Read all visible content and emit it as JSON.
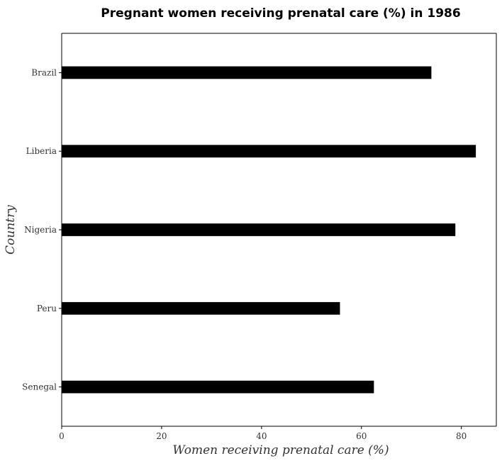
{
  "chart_data": {
    "type": "bar",
    "orientation": "horizontal",
    "title": "Pregnant women receiving prenatal care (%) in 1986",
    "xlabel": "Women receiving prenatal care (%)",
    "ylabel": "Country",
    "categories": [
      "Brazil",
      "Liberia",
      "Nigeria",
      "Peru",
      "Senegal"
    ],
    "values": [
      74.0,
      82.9,
      78.8,
      55.7,
      62.5
    ],
    "xlim": [
      0,
      87
    ],
    "xticks": [
      0,
      20,
      40,
      60,
      80
    ],
    "xtick_labels": [
      "0",
      "20",
      "40",
      "60",
      "80"
    ],
    "grid": false,
    "legend": "none",
    "bar_color": "#000000"
  }
}
